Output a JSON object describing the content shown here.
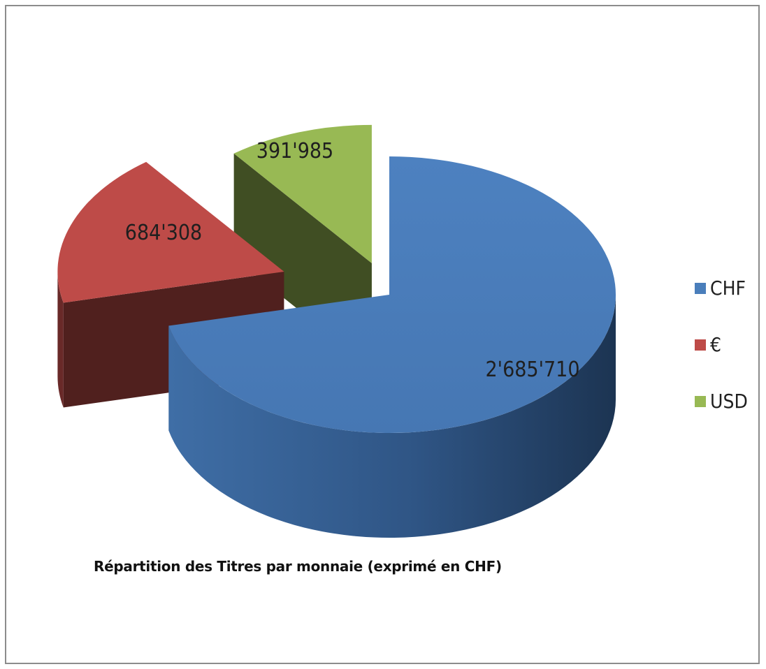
{
  "chart_data": {
    "type": "pie",
    "style": "3d-exploded",
    "title": "Répartition des Titres par monnaie (exprimé en CHF)",
    "legend_position": "right",
    "slices": [
      {
        "name": "CHF",
        "value": 2685710,
        "label": "2'685'710",
        "color": "#4a7ebb"
      },
      {
        "name": "€",
        "value": 684308,
        "label": "684'308",
        "color": "#be4b48"
      },
      {
        "name": "USD",
        "value": 391985,
        "label": "391'985",
        "color": "#98b954"
      }
    ]
  }
}
